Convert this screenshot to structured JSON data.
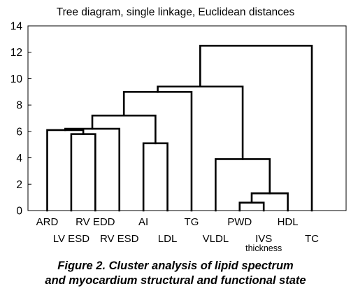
{
  "chart_data": {
    "type": "dendrogram",
    "title": "Tree diagram, single linkage, Euclidean distances",
    "xlabel": "",
    "ylabel": "",
    "ylim": [
      0,
      14
    ],
    "yticks": [
      0,
      2,
      4,
      6,
      8,
      10,
      12,
      14
    ],
    "grid": false,
    "leaves": [
      {
        "label": "ARD",
        "row": 1
      },
      {
        "label": "LV ESD",
        "row": 2
      },
      {
        "label": "RV EDD",
        "row": 1
      },
      {
        "label": "RV ESD",
        "row": 2
      },
      {
        "label": "AI",
        "row": 1
      },
      {
        "label": "LDL",
        "row": 2
      },
      {
        "label": "TG",
        "row": 1
      },
      {
        "label": "VLDL",
        "row": 2
      },
      {
        "label": "PWD",
        "row": 1
      },
      {
        "label": "IVS",
        "sublabel": "thickness",
        "row": 2
      },
      {
        "label": "HDL",
        "row": 1
      },
      {
        "label": "TC",
        "row": 2
      }
    ],
    "merges": [
      {
        "left": 8,
        "right": 9,
        "height": 0.6
      },
      {
        "left": 12,
        "right": 10,
        "height": 1.3
      },
      {
        "left": 7,
        "right": 13,
        "height": 3.9
      },
      {
        "left": 4,
        "right": 5,
        "height": 5.1
      },
      {
        "left": 1,
        "right": 2,
        "height": 5.8
      },
      {
        "left": 0,
        "right": 16,
        "height": 6.1
      },
      {
        "left": 17,
        "right": 3,
        "height": 6.2
      },
      {
        "left": 18,
        "right": 15,
        "height": 7.2
      },
      {
        "left": 19,
        "right": 6,
        "height": 9.0
      },
      {
        "left": 20,
        "right": 14,
        "height": 9.4
      },
      {
        "left": 21,
        "right": 11,
        "height": 12.5
      }
    ]
  },
  "caption": {
    "line1": "Figure 2.  Cluster analysis of lipid spectrum",
    "line2": "and myocardium structural and functional state"
  }
}
